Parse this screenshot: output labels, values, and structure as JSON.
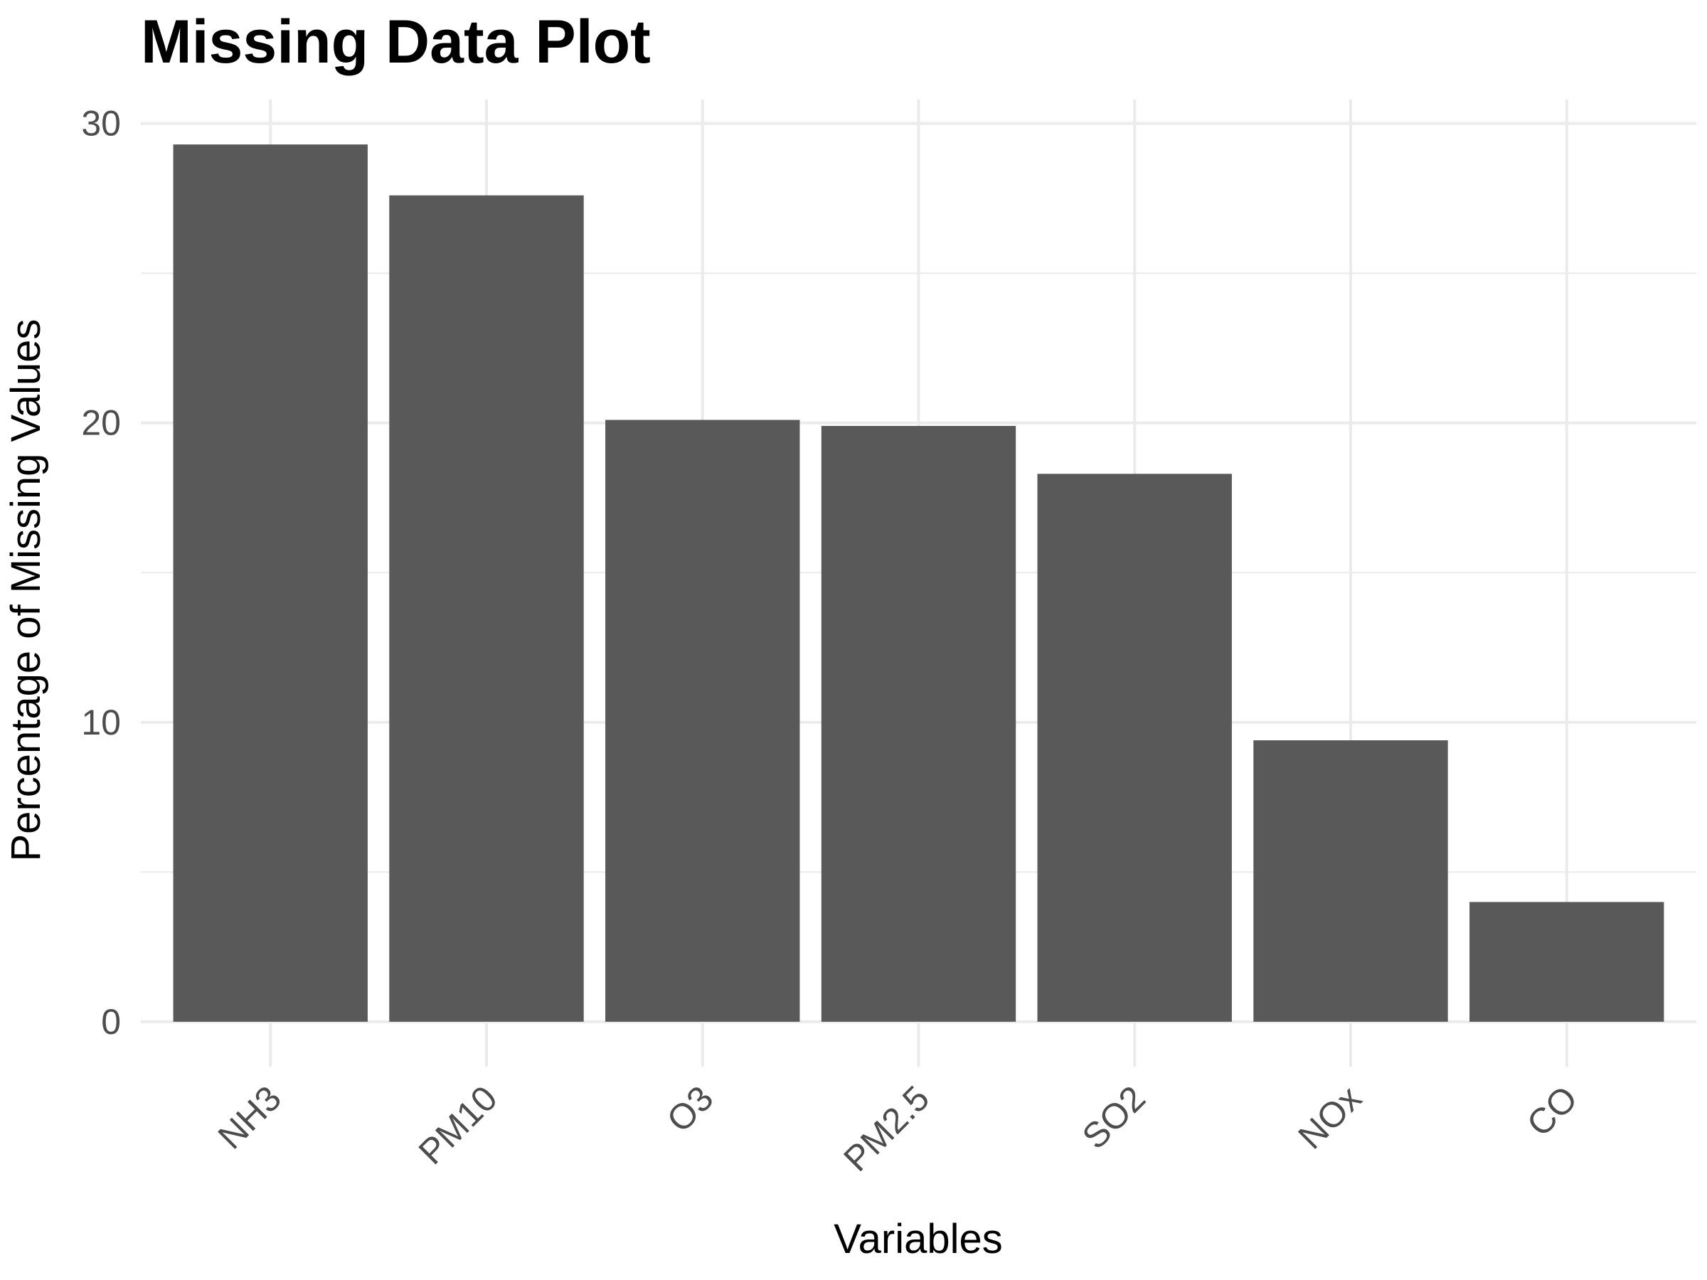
{
  "chart_data": {
    "type": "bar",
    "title": "Missing Data Plot",
    "xlabel": "Variables",
    "ylabel": "Percentage of Missing Values",
    "categories": [
      "NH3",
      "PM10",
      "O3",
      "PM2.5",
      "SO2",
      "NOx",
      "CO"
    ],
    "values": [
      29.3,
      27.6,
      20.1,
      19.9,
      18.3,
      9.4,
      4.0
    ],
    "ylim": [
      -1.5,
      30.8
    ],
    "yticks": [
      "0",
      "10",
      "20",
      "30"
    ],
    "bar_color": "#595959",
    "grid": true,
    "legend": "none"
  }
}
